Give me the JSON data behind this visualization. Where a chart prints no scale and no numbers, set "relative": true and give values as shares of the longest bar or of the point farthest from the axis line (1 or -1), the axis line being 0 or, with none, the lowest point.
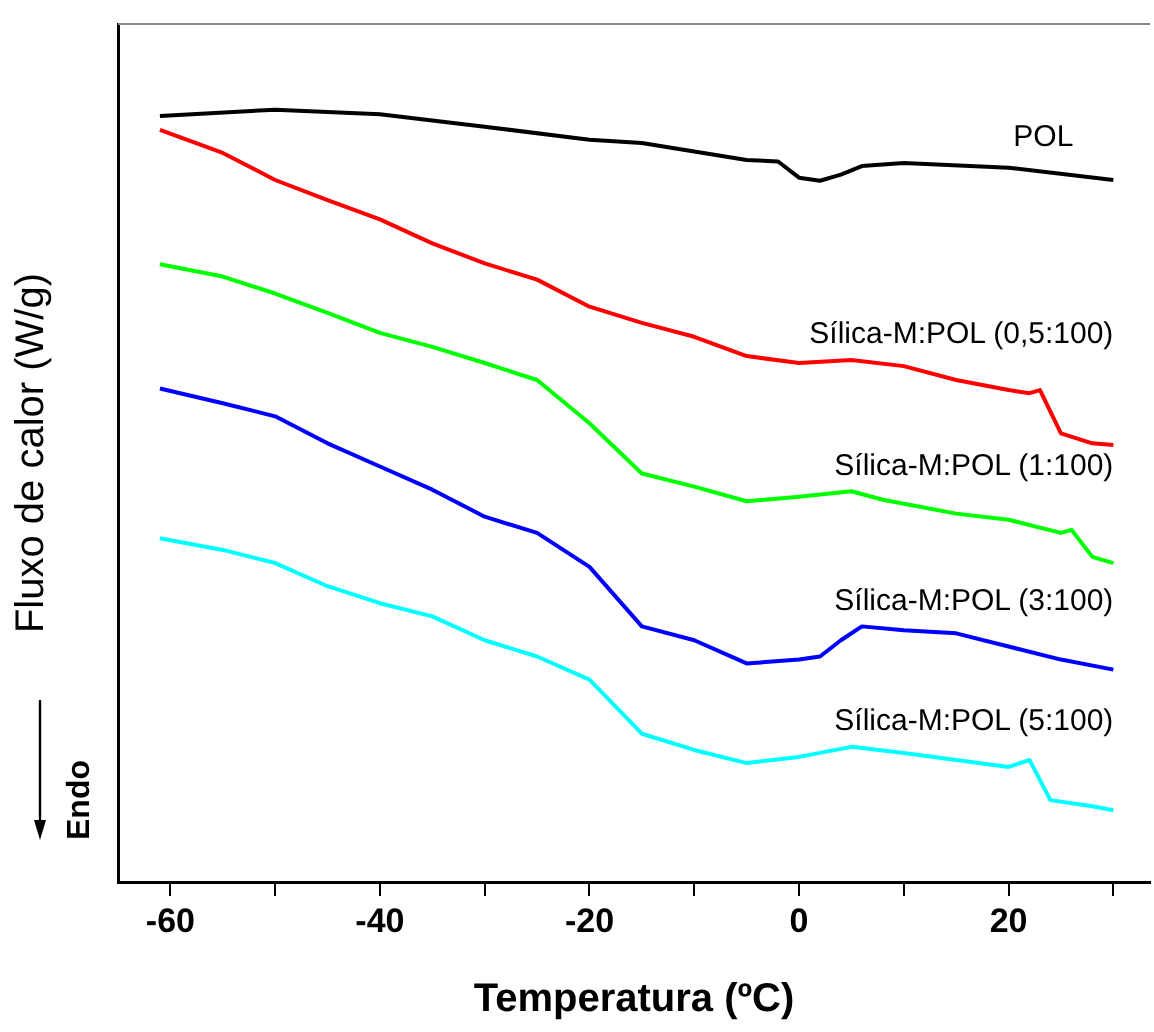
{
  "chart_data": {
    "type": "line",
    "relative": true,
    "xlabel": "Temperatura (ºC)",
    "ylabel": "Fluxo de calor (W/g)",
    "xlim": [
      -65,
      33.5
    ],
    "xticks": [
      -60,
      {
        "value": -50,
        "label": null
      },
      -40,
      {
        "value": -30,
        "label": null
      },
      -20,
      {
        "value": -10,
        "label": null
      },
      0,
      {
        "value": 10,
        "label": null
      },
      20,
      {
        "value": 30,
        "label": null
      }
    ],
    "legend": false,
    "grid": false,
    "marker": "none",
    "line_style": "solid",
    "annotations": [
      "Endo"
    ],
    "series": [
      {
        "name": "POL",
        "color": "#000000",
        "x": [
          -61,
          -50,
          -40,
          -30,
          -20,
          -15,
          -10,
          -5,
          -2,
          0,
          2,
          4,
          6,
          10,
          20,
          30
        ],
        "values": [
          0.992,
          1.0,
          0.994,
          0.978,
          0.961,
          0.957,
          0.946,
          0.935,
          0.933,
          0.912,
          0.908,
          0.916,
          0.927,
          0.931,
          0.925,
          0.909
        ]
      },
      {
        "name": "Sílica-M:POL (0,5:100)",
        "color": "#ff0000",
        "x": [
          -61,
          -55,
          -50,
          -45,
          -40,
          -35,
          -30,
          -25,
          -20,
          -15,
          -10,
          -5,
          0,
          5,
          10,
          15,
          20,
          22,
          23,
          25,
          28,
          30
        ],
        "values": [
          0.974,
          0.944,
          0.909,
          0.883,
          0.858,
          0.827,
          0.801,
          0.78,
          0.745,
          0.724,
          0.706,
          0.681,
          0.672,
          0.676,
          0.668,
          0.65,
          0.637,
          0.633,
          0.637,
          0.581,
          0.568,
          0.566
        ]
      },
      {
        "name": "Sílica-M:POL (1:100)",
        "color": "#00ff00",
        "x": [
          -61,
          -55,
          -50,
          -45,
          -40,
          -35,
          -30,
          -25,
          -20,
          -15,
          -10,
          -5,
          0,
          5,
          8,
          15,
          20,
          25,
          26,
          28,
          30
        ],
        "values": [
          0.8,
          0.784,
          0.762,
          0.737,
          0.711,
          0.693,
          0.672,
          0.65,
          0.594,
          0.529,
          0.512,
          0.493,
          0.499,
          0.506,
          0.495,
          0.477,
          0.469,
          0.452,
          0.456,
          0.421,
          0.413
        ]
      },
      {
        "name": "Sílica-M:POL (3:100)",
        "color": "#0000ff",
        "x": [
          -61,
          -55,
          -50,
          -45,
          -40,
          -35,
          -30,
          -25,
          -20,
          -15,
          -10,
          -5,
          0,
          2,
          4,
          6,
          10,
          15,
          20,
          25,
          30
        ],
        "values": [
          0.639,
          0.62,
          0.603,
          0.568,
          0.538,
          0.508,
          0.473,
          0.452,
          0.408,
          0.331,
          0.313,
          0.283,
          0.288,
          0.292,
          0.313,
          0.331,
          0.326,
          0.322,
          0.305,
          0.288,
          0.275
        ]
      },
      {
        "name": "Sílica-M:POL (5:100)",
        "color": "#00ffff",
        "x": [
          -61,
          -55,
          -50,
          -45,
          -40,
          -35,
          -30,
          -25,
          -20,
          -15,
          -10,
          -5,
          0,
          5,
          10,
          15,
          20,
          22,
          24,
          28,
          30
        ],
        "values": [
          0.445,
          0.43,
          0.413,
          0.383,
          0.361,
          0.344,
          0.313,
          0.292,
          0.262,
          0.192,
          0.171,
          0.154,
          0.162,
          0.175,
          0.167,
          0.158,
          0.149,
          0.158,
          0.106,
          0.098,
          0.093
        ]
      }
    ]
  }
}
